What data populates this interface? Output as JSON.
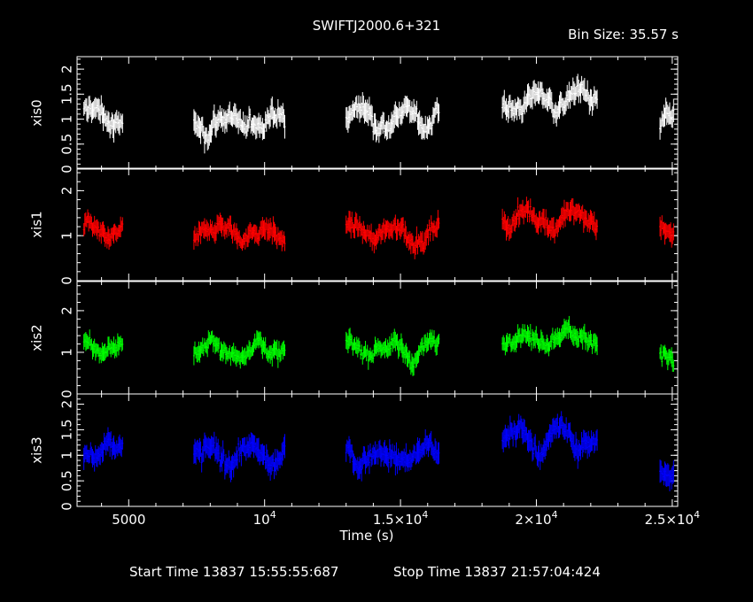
{
  "chart_data": {
    "type": "scatter",
    "title": "SWIFTJ2000.6+321",
    "bin_size_label": "Bin Size: 35.57 s",
    "xlabel": "Time (s)",
    "xlim": [
      3100,
      25200
    ],
    "x_ticks": [
      {
        "value": 5000,
        "label": "5000"
      },
      {
        "value": 10000,
        "label": "10",
        "exp": "4"
      },
      {
        "value": 15000,
        "label": "1.5×10",
        "exp": "4"
      },
      {
        "value": 20000,
        "label": "2×10",
        "exp": "4"
      },
      {
        "value": 25000,
        "label": "2.5×10",
        "exp": "4"
      }
    ],
    "segments": [
      [
        3350,
        4800
      ],
      [
        7400,
        10750
      ],
      [
        13000,
        16450
      ],
      [
        18750,
        22250
      ],
      [
        24550,
        25050
      ]
    ],
    "bin_size": 35.57,
    "panels": [
      {
        "ylabel": "xis0",
        "color": "#ffffff",
        "ylim": [
          0,
          2.25
        ],
        "ticks": [
          0,
          0.5,
          1,
          1.5,
          2
        ],
        "tick_labels": [
          "0",
          "0.5",
          "1",
          "1.5",
          "2"
        ],
        "mean": [
          1.05,
          0.95,
          1.05,
          1.35,
          0.85
        ]
      },
      {
        "ylabel": "xis1",
        "color": "#ff0000",
        "ylim": [
          0,
          2.5
        ],
        "ticks": [
          0,
          1,
          2
        ],
        "tick_labels": [
          "0",
          "1",
          "2"
        ],
        "mean": [
          1.05,
          1.05,
          1.05,
          1.4,
          1.0
        ]
      },
      {
        "ylabel": "xis2",
        "color": "#00ff00",
        "ylim": [
          0,
          2.7
        ],
        "ticks": [
          0,
          1,
          2
        ],
        "tick_labels": [
          "0",
          "1",
          "2"
        ],
        "mean": [
          1.1,
          1.05,
          1.05,
          1.4,
          0.85
        ]
      },
      {
        "ylabel": "xis3",
        "color": "#0000ff",
        "ylim": [
          0,
          2.2
        ],
        "ticks": [
          0,
          0.5,
          1,
          1.5,
          2
        ],
        "tick_labels": [
          "0",
          "0.5",
          "1",
          "1.5",
          "2"
        ],
        "mean": [
          1.0,
          1.0,
          1.0,
          1.3,
          0.75
        ]
      }
    ]
  },
  "footer": {
    "start_time": "Start Time 13837 15:55:55:687",
    "stop_time": "Stop Time 13837 21:57:04:424"
  }
}
